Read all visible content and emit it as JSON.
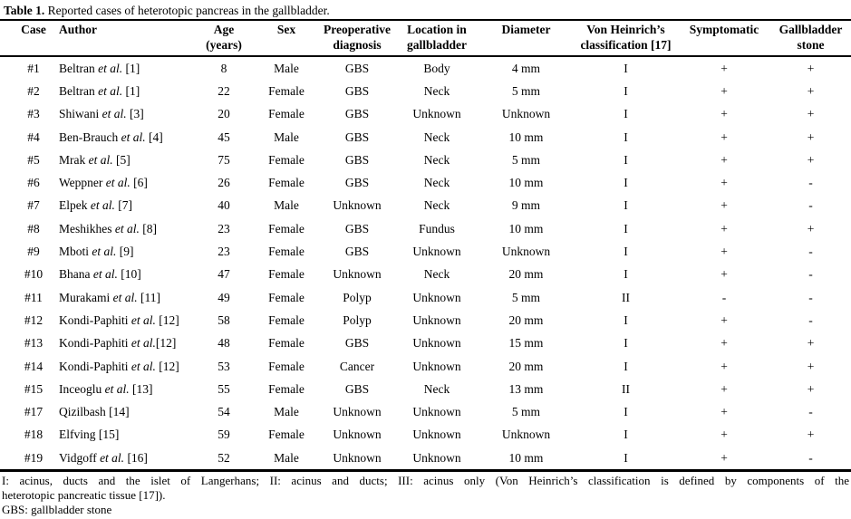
{
  "caption": {
    "bold": "Table 1.",
    "rest": " Reported cases of heterotopic pancreas in the gallbladder."
  },
  "table": {
    "columns": [
      {
        "line1": "Case"
      },
      {
        "line1": "Author"
      },
      {
        "line1": "Age",
        "line2": "(years)"
      },
      {
        "line1": "Sex"
      },
      {
        "line1": "Preoperative",
        "line2": "diagnosis"
      },
      {
        "line1": "Location in",
        "line2": "gallbladder"
      },
      {
        "line1": "Diameter"
      },
      {
        "line1": "Von Heinrich’s",
        "line2": "classification [17]"
      },
      {
        "line1": "Symptomatic"
      },
      {
        "line1": "Gallbladder",
        "line2": "stone"
      }
    ],
    "rows": [
      {
        "case": "#1",
        "author": {
          "name": "Beltran ",
          "etal": "et al.",
          "ref": " [1]"
        },
        "age": "8",
        "sex": "Male",
        "preop": "GBS",
        "location": "Body",
        "diameter": "4 mm",
        "classification": "I",
        "symptomatic": "+",
        "stone": "+"
      },
      {
        "case": "#2",
        "author": {
          "name": "Beltran ",
          "etal": "et al.",
          "ref": " [1]"
        },
        "age": "22",
        "sex": "Female",
        "preop": "GBS",
        "location": "Neck",
        "diameter": "5 mm",
        "classification": "I",
        "symptomatic": "+",
        "stone": "+"
      },
      {
        "case": "#3",
        "author": {
          "name": "Shiwani ",
          "etal": "et al.",
          "ref": " [3]"
        },
        "age": "20",
        "sex": "Female",
        "preop": "GBS",
        "location": "Unknown",
        "diameter": "Unknown",
        "classification": "I",
        "symptomatic": "+",
        "stone": "+"
      },
      {
        "case": "#4",
        "author": {
          "name": "Ben-Brauch ",
          "etal": "et al.",
          "ref": " [4]"
        },
        "age": "45",
        "sex": "Male",
        "preop": "GBS",
        "location": "Neck",
        "diameter": "10 mm",
        "classification": "I",
        "symptomatic": "+",
        "stone": "+"
      },
      {
        "case": "#5",
        "author": {
          "name": "Mrak ",
          "etal": "et al.",
          "ref": " [5]"
        },
        "age": "75",
        "sex": "Female",
        "preop": "GBS",
        "location": "Neck",
        "diameter": "5 mm",
        "classification": "I",
        "symptomatic": "+",
        "stone": "+"
      },
      {
        "case": "#6",
        "author": {
          "name": "Weppner ",
          "etal": "et al.",
          "ref": " [6]"
        },
        "age": "26",
        "sex": "Female",
        "preop": "GBS",
        "location": "Neck",
        "diameter": "10 mm",
        "classification": "I",
        "symptomatic": "+",
        "stone": "-"
      },
      {
        "case": "#7",
        "author": {
          "name": "Elpek ",
          "etal": "et al.",
          "ref": " [7]"
        },
        "age": "40",
        "sex": "Male",
        "preop": "Unknown",
        "location": "Neck",
        "diameter": "9 mm",
        "classification": "I",
        "symptomatic": "+",
        "stone": "-"
      },
      {
        "case": "#8",
        "author": {
          "name": "Meshikhes ",
          "etal": "et al.",
          "ref": " [8]"
        },
        "age": "23",
        "sex": "Female",
        "preop": "GBS",
        "location": "Fundus",
        "diameter": "10 mm",
        "classification": "I",
        "symptomatic": "+",
        "stone": "+"
      },
      {
        "case": "#9",
        "author": {
          "name": "Mboti ",
          "etal": "et al.",
          "ref": " [9]"
        },
        "age": "23",
        "sex": "Female",
        "preop": "GBS",
        "location": "Unknown",
        "diameter": "Unknown",
        "classification": "I",
        "symptomatic": "+",
        "stone": "-"
      },
      {
        "case": "#10",
        "author": {
          "name": "Bhana ",
          "etal": "et al.",
          "ref": " [10]"
        },
        "age": "47",
        "sex": "Female",
        "preop": "Unknown",
        "location": "Neck",
        "diameter": "20 mm",
        "classification": "I",
        "symptomatic": "+",
        "stone": "-"
      },
      {
        "case": "#11",
        "author": {
          "name": "Murakami ",
          "etal": "et al.",
          "ref": " [11]"
        },
        "age": "49",
        "sex": "Female",
        "preop": "Polyp",
        "location": "Unknown",
        "diameter": "5 mm",
        "classification": "II",
        "symptomatic": "-",
        "stone": "-"
      },
      {
        "case": "#12",
        "author": {
          "name": "Kondi-Paphiti ",
          "etal": "et al.",
          "ref": " [12]"
        },
        "age": "58",
        "sex": "Female",
        "preop": "Polyp",
        "location": "Unknown",
        "diameter": "20 mm",
        "classification": "I",
        "symptomatic": "+",
        "stone": "-"
      },
      {
        "case": "#13",
        "author": {
          "name": "Kondi-Paphiti ",
          "etal": "et al.",
          "ref": "[12]"
        },
        "age": "48",
        "sex": "Female",
        "preop": "GBS",
        "location": "Unknown",
        "diameter": "15 mm",
        "classification": "I",
        "symptomatic": "+",
        "stone": "+"
      },
      {
        "case": "#14",
        "author": {
          "name": "Kondi-Paphiti ",
          "etal": "et al.",
          "ref": " [12]"
        },
        "age": "53",
        "sex": "Female",
        "preop": "Cancer",
        "location": "Unknown",
        "diameter": "20 mm",
        "classification": "I",
        "symptomatic": "+",
        "stone": "+"
      },
      {
        "case": "#15",
        "author": {
          "name": "Inceoglu ",
          "etal": "et al.",
          "ref": " [13]"
        },
        "age": "55",
        "sex": "Female",
        "preop": "GBS",
        "location": "Neck",
        "diameter": "13 mm",
        "classification": "II",
        "symptomatic": "+",
        "stone": "+"
      },
      {
        "case": "#17",
        "author": {
          "name": "Qizilbash",
          "etal": "",
          "ref": " [14]"
        },
        "age": "54",
        "sex": "Male",
        "preop": "Unknown",
        "location": "Unknown",
        "diameter": "5 mm",
        "classification": "I",
        "symptomatic": "+",
        "stone": "-"
      },
      {
        "case": "#18",
        "author": {
          "name": "Elfving",
          "etal": "",
          "ref": " [15]"
        },
        "age": "59",
        "sex": "Female",
        "preop": "Unknown",
        "location": "Unknown",
        "diameter": "Unknown",
        "classification": "I",
        "symptomatic": "+",
        "stone": "+"
      },
      {
        "case": "#19",
        "author": {
          "name": "Vidgoff ",
          "etal": "et al.",
          "ref": " [16]"
        },
        "age": "52",
        "sex": "Male",
        "preop": "Unknown",
        "location": "Unknown",
        "diameter": "10 mm",
        "classification": "I",
        "symptomatic": "+",
        "stone": "-"
      }
    ]
  },
  "footnotes": {
    "classification_line1": "I: acinus, ducts and the islet of Langerhans; II: acinus and ducts; III: acinus only (Von Heinrich’s classification is defined by components of the",
    "classification_line2": "heterotopic pancreatic tissue [17]).",
    "gbs": "GBS: gallbladder stone"
  }
}
